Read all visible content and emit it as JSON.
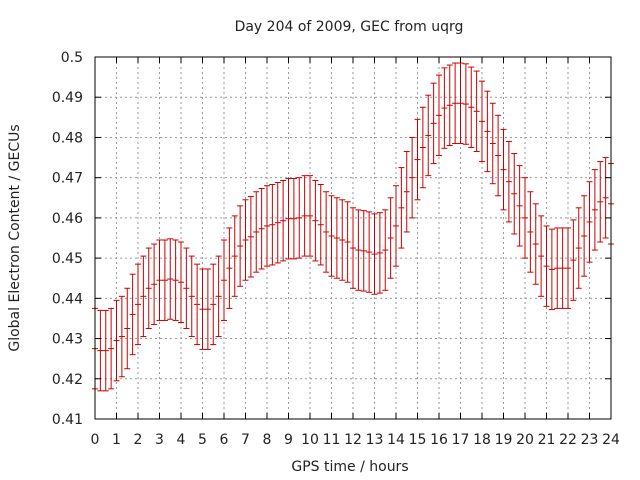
{
  "chart_data": {
    "type": "line",
    "title": "Day 204 of 2009, GEC from uqrg",
    "xlabel": "GPS time / hours",
    "ylabel": "Global Electron Content / GECUs",
    "xlim": [
      0,
      24
    ],
    "ylim": [
      0.41,
      0.5
    ],
    "xticks": [
      0,
      1,
      2,
      3,
      4,
      5,
      6,
      7,
      8,
      9,
      10,
      11,
      12,
      13,
      14,
      15,
      16,
      17,
      18,
      19,
      20,
      21,
      22,
      23,
      24
    ],
    "yticks": [
      0.41,
      0.42,
      0.43,
      0.44,
      0.45,
      0.46,
      0.47,
      0.48,
      0.49,
      0.5
    ],
    "grid": true,
    "legend": "none",
    "color": "#cc0000",
    "series": [
      {
        "x": [
          0,
          0.25,
          0.5,
          0.75,
          1,
          1.25,
          1.5,
          1.75,
          2,
          2.25,
          2.5,
          2.75,
          3,
          3.25,
          3.5,
          3.75,
          4,
          4.25,
          4.5,
          4.75,
          5,
          5.25,
          5.5,
          5.75,
          6,
          6.25,
          6.5,
          6.75,
          7,
          7.25,
          7.5,
          7.75,
          8,
          8.25,
          8.5,
          8.75,
          9,
          9.25,
          9.5,
          9.75,
          10,
          10.25,
          10.5,
          10.75,
          11,
          11.25,
          11.5,
          11.75,
          12,
          12.25,
          12.5,
          12.75,
          13,
          13.25,
          13.5,
          13.75,
          14,
          14.25,
          14.5,
          14.75,
          15,
          15.25,
          15.5,
          15.75,
          16,
          16.25,
          16.5,
          16.75,
          17,
          17.25,
          17.5,
          17.75,
          18,
          18.25,
          18.5,
          18.75,
          19,
          19.25,
          19.5,
          19.75,
          20,
          20.25,
          20.5,
          20.75,
          21,
          21.25,
          21.5,
          21.75,
          22,
          22.25,
          22.5,
          22.75,
          23,
          23.25,
          23.5,
          23.75,
          24
        ],
        "y": [
          0.4275,
          0.427,
          0.427,
          0.4275,
          0.4295,
          0.4305,
          0.4325,
          0.436,
          0.4385,
          0.4405,
          0.4425,
          0.4435,
          0.4445,
          0.4445,
          0.4448,
          0.4445,
          0.444,
          0.4425,
          0.4405,
          0.4385,
          0.4373,
          0.4373,
          0.4385,
          0.4405,
          0.4445,
          0.4475,
          0.4505,
          0.453,
          0.4545,
          0.4553,
          0.4565,
          0.4573,
          0.458,
          0.4583,
          0.4588,
          0.4593,
          0.4598,
          0.4598,
          0.46,
          0.4605,
          0.4605,
          0.4593,
          0.4583,
          0.4565,
          0.4555,
          0.455,
          0.4545,
          0.454,
          0.4525,
          0.452,
          0.4518,
          0.4515,
          0.451,
          0.4513,
          0.452,
          0.455,
          0.458,
          0.4625,
          0.4665,
          0.47,
          0.4745,
          0.4775,
          0.4805,
          0.4835,
          0.4855,
          0.4873,
          0.488,
          0.4885,
          0.4885,
          0.4883,
          0.4875,
          0.4865,
          0.484,
          0.4815,
          0.4785,
          0.4755,
          0.472,
          0.469,
          0.466,
          0.463,
          0.46,
          0.4565,
          0.4535,
          0.4505,
          0.448,
          0.4472,
          0.4475,
          0.4475,
          0.4475,
          0.4495,
          0.4525,
          0.4555,
          0.459,
          0.462,
          0.464,
          0.465,
          0.4635
        ],
        "error": 0.01
      }
    ]
  }
}
